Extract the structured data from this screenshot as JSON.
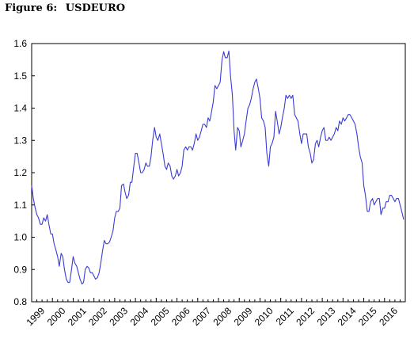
{
  "figure": {
    "label": "Figure 6:",
    "name": "USDEURO"
  },
  "chart_data": {
    "type": "line",
    "title": "Figure 6:  USDEURO",
    "xlabel": "",
    "ylabel": "",
    "ylim": [
      0.8,
      1.6
    ],
    "xlim": [
      1999.0,
      2017.0
    ],
    "yticks": [
      0.8,
      0.9,
      1.0,
      1.1,
      1.2,
      1.3,
      1.4,
      1.5,
      1.6
    ],
    "ytick_labels": [
      "0.8",
      "0.9",
      "1.0",
      "1.1",
      "1.2",
      "1.3",
      "1.4",
      "1.5",
      "1.6"
    ],
    "xtick_labels": [
      "1999",
      "2000",
      "2001",
      "2002",
      "2003",
      "2004",
      "2005",
      "2006",
      "2007",
      "2008",
      "2009",
      "2010",
      "2011",
      "2012",
      "2013",
      "2014",
      "2015",
      "2016"
    ],
    "grid": false,
    "line_color": "#3b3bd6",
    "series": [
      {
        "x": [
          1999.0,
          1999.08,
          1999.17,
          1999.25,
          1999.33,
          1999.42,
          1999.5,
          1999.58,
          1999.67,
          1999.75,
          1999.83,
          1999.92,
          2000.0,
          2000.08,
          2000.17,
          2000.25,
          2000.33,
          2000.42,
          2000.5,
          2000.58,
          2000.67,
          2000.75,
          2000.83,
          2000.92,
          2001.0,
          2001.08,
          2001.17,
          2001.25,
          2001.33,
          2001.42,
          2001.5,
          2001.58,
          2001.67,
          2001.75,
          2001.83,
          2001.92,
          2002.0,
          2002.08,
          2002.17,
          2002.25,
          2002.33,
          2002.42,
          2002.5,
          2002.58,
          2002.67,
          2002.75,
          2002.83,
          2002.92,
          2003.0,
          2003.08,
          2003.17,
          2003.25,
          2003.33,
          2003.42,
          2003.5,
          2003.58,
          2003.67,
          2003.75,
          2003.83,
          2003.92,
          2004.0,
          2004.08,
          2004.17,
          2004.25,
          2004.33,
          2004.42,
          2004.5,
          2004.58,
          2004.67,
          2004.75,
          2004.83,
          2004.92,
          2005.0,
          2005.08,
          2005.17,
          2005.25,
          2005.33,
          2005.42,
          2005.5,
          2005.58,
          2005.67,
          2005.75,
          2005.83,
          2005.92,
          2006.0,
          2006.08,
          2006.17,
          2006.25,
          2006.33,
          2006.42,
          2006.5,
          2006.58,
          2006.67,
          2006.75,
          2006.83,
          2006.92,
          2007.0,
          2007.08,
          2007.17,
          2007.25,
          2007.33,
          2007.42,
          2007.5,
          2007.58,
          2007.67,
          2007.75,
          2007.83,
          2007.92,
          2008.0,
          2008.08,
          2008.17,
          2008.25,
          2008.33,
          2008.42,
          2008.5,
          2008.58,
          2008.67,
          2008.75,
          2008.83,
          2008.92,
          2009.0,
          2009.08,
          2009.17,
          2009.25,
          2009.33,
          2009.42,
          2009.5,
          2009.58,
          2009.67,
          2009.75,
          2009.83,
          2009.92,
          2010.0,
          2010.08,
          2010.17,
          2010.25,
          2010.33,
          2010.42,
          2010.5,
          2010.58,
          2010.67,
          2010.75,
          2010.83,
          2010.92,
          2011.0,
          2011.08,
          2011.17,
          2011.25,
          2011.33,
          2011.42,
          2011.5,
          2011.58,
          2011.67,
          2011.75,
          2011.83,
          2011.92,
          2012.0,
          2012.08,
          2012.17,
          2012.25,
          2012.33,
          2012.42,
          2012.5,
          2012.58,
          2012.67,
          2012.75,
          2012.83,
          2012.92,
          2013.0,
          2013.08,
          2013.17,
          2013.25,
          2013.33,
          2013.42,
          2013.5,
          2013.58,
          2013.67,
          2013.75,
          2013.83,
          2013.92,
          2014.0,
          2014.08,
          2014.17,
          2014.25,
          2014.33,
          2014.42,
          2014.5,
          2014.58,
          2014.67,
          2014.75,
          2014.83,
          2014.92,
          2015.0,
          2015.08,
          2015.17,
          2015.25,
          2015.33,
          2015.42,
          2015.5,
          2015.58,
          2015.67,
          2015.75,
          2015.83,
          2015.92,
          2016.0,
          2016.08,
          2016.17,
          2016.25,
          2016.33,
          2016.42,
          2016.5,
          2016.58,
          2016.67,
          2016.75,
          2016.83,
          2016.92
        ],
        "y": [
          1.16,
          1.12,
          1.09,
          1.07,
          1.06,
          1.04,
          1.04,
          1.06,
          1.05,
          1.07,
          1.04,
          1.01,
          1.01,
          0.98,
          0.96,
          0.94,
          0.91,
          0.95,
          0.94,
          0.9,
          0.87,
          0.86,
          0.86,
          0.9,
          0.94,
          0.92,
          0.91,
          0.89,
          0.87,
          0.855,
          0.86,
          0.9,
          0.91,
          0.905,
          0.89,
          0.89,
          0.88,
          0.87,
          0.875,
          0.89,
          0.92,
          0.96,
          0.99,
          0.98,
          0.98,
          0.985,
          1.0,
          1.02,
          1.06,
          1.08,
          1.08,
          1.09,
          1.16,
          1.165,
          1.14,
          1.12,
          1.13,
          1.17,
          1.17,
          1.22,
          1.26,
          1.26,
          1.23,
          1.2,
          1.2,
          1.21,
          1.23,
          1.22,
          1.22,
          1.25,
          1.3,
          1.34,
          1.31,
          1.3,
          1.32,
          1.29,
          1.26,
          1.22,
          1.21,
          1.23,
          1.22,
          1.19,
          1.18,
          1.19,
          1.21,
          1.19,
          1.2,
          1.22,
          1.27,
          1.28,
          1.27,
          1.28,
          1.28,
          1.27,
          1.29,
          1.32,
          1.3,
          1.31,
          1.33,
          1.35,
          1.35,
          1.34,
          1.37,
          1.36,
          1.39,
          1.42,
          1.47,
          1.46,
          1.47,
          1.48,
          1.55,
          1.575,
          1.556,
          1.556,
          1.577,
          1.5,
          1.44,
          1.33,
          1.27,
          1.34,
          1.33,
          1.28,
          1.3,
          1.32,
          1.36,
          1.4,
          1.41,
          1.43,
          1.46,
          1.48,
          1.49,
          1.46,
          1.43,
          1.37,
          1.36,
          1.34,
          1.26,
          1.22,
          1.28,
          1.29,
          1.31,
          1.39,
          1.36,
          1.32,
          1.34,
          1.37,
          1.4,
          1.44,
          1.43,
          1.44,
          1.43,
          1.44,
          1.38,
          1.37,
          1.36,
          1.32,
          1.29,
          1.32,
          1.32,
          1.32,
          1.28,
          1.26,
          1.23,
          1.24,
          1.29,
          1.3,
          1.28,
          1.31,
          1.33,
          1.34,
          1.3,
          1.3,
          1.31,
          1.3,
          1.31,
          1.32,
          1.34,
          1.33,
          1.36,
          1.35,
          1.37,
          1.36,
          1.37,
          1.38,
          1.38,
          1.37,
          1.36,
          1.35,
          1.32,
          1.28,
          1.25,
          1.23,
          1.16,
          1.13,
          1.08,
          1.08,
          1.11,
          1.12,
          1.1,
          1.11,
          1.12,
          1.12,
          1.07,
          1.09,
          1.09,
          1.11,
          1.11,
          1.13,
          1.13,
          1.12,
          1.11,
          1.12,
          1.12,
          1.1,
          1.08,
          1.055
        ]
      }
    ]
  }
}
